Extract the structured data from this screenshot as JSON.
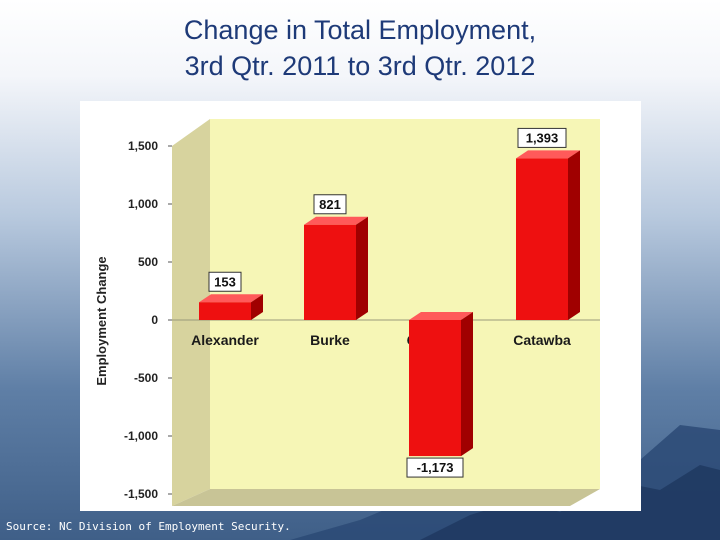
{
  "slide": {
    "title_line1": "Change in Total Employment,",
    "title_line2": "3rd Qtr. 2011 to 3rd Qtr. 2012",
    "source": "Source: NC Division of Employment Security."
  },
  "chart_data": {
    "type": "bar",
    "title": "",
    "xlabel": "",
    "ylabel": "Employment Change",
    "categories": [
      "Alexander",
      "Burke",
      "Caldwell",
      "Catawba"
    ],
    "series": [
      {
        "values": [
          153,
          821,
          -1173,
          1393
        ],
        "labels": [
          "153",
          "821",
          "-1,173",
          "1,393"
        ]
      }
    ],
    "ylim": [
      -1500,
      1500
    ],
    "yticks": [
      1500,
      1000,
      500,
      0,
      -500,
      -1000,
      -1500
    ],
    "ytick_labels": [
      "1,500",
      "1,000",
      "500",
      "0",
      "-500",
      "-1,000",
      "-1,500"
    ],
    "grid": false,
    "style": "3d",
    "colors": {
      "bar": "#ee1010",
      "wall": "#f6f6b6",
      "floor": "#d0cca0"
    }
  }
}
